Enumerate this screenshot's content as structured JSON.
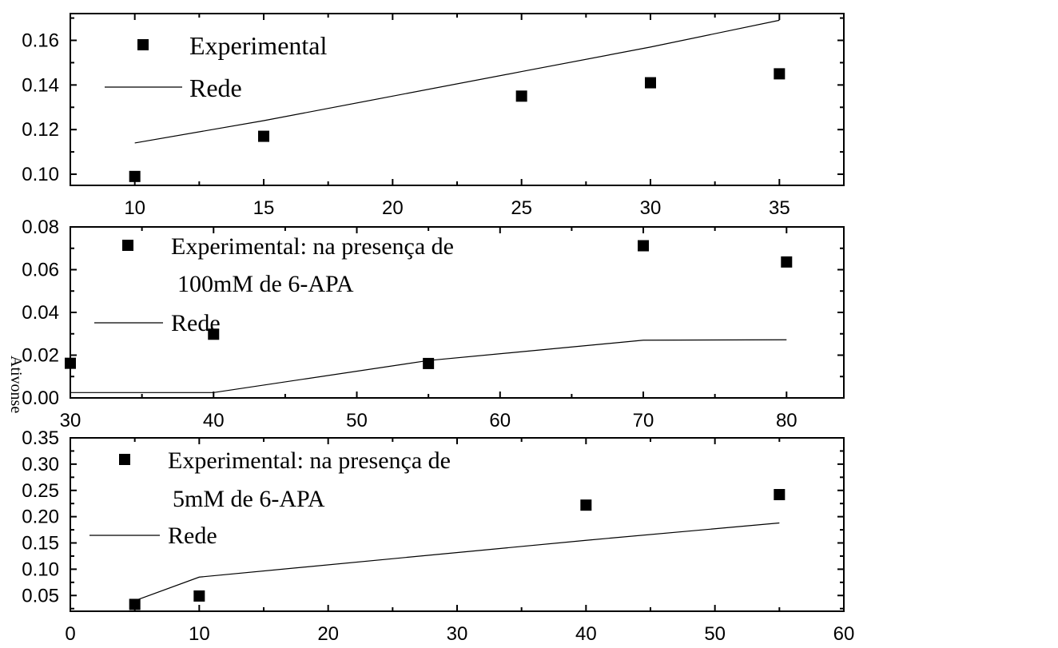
{
  "chart_data": [
    {
      "type": "scatter",
      "xlim": [
        7.5,
        37.5
      ],
      "ylim": [
        0.095,
        0.172
      ],
      "xticks": [
        10,
        15,
        20,
        25,
        30,
        35
      ],
      "xtick_labels": [
        "10",
        "15",
        "20",
        "25",
        "30",
        "35"
      ],
      "yticks": [
        0.1,
        0.12,
        0.14,
        0.16
      ],
      "ytick_labels": [
        "0.10",
        "0.12",
        "0.14",
        "0.16"
      ],
      "series": [
        {
          "name": "Experimental",
          "kind": "markers",
          "x": [
            10,
            15,
            25,
            30,
            35
          ],
          "y": [
            0.099,
            0.117,
            0.135,
            0.141,
            0.145
          ]
        },
        {
          "name": "Rede",
          "kind": "line",
          "x": [
            10,
            15,
            25,
            30,
            35
          ],
          "y": [
            0.114,
            0.124,
            0.146,
            0.157,
            0.169
          ]
        }
      ],
      "legend": [
        {
          "label": "Experimental"
        },
        {
          "label": "Rede"
        }
      ]
    },
    {
      "type": "scatter",
      "xlim": [
        30,
        84
      ],
      "ylim": [
        0.0,
        0.08
      ],
      "xticks": [
        30,
        40,
        50,
        60,
        70,
        80
      ],
      "xtick_labels": [
        "30",
        "40",
        "50",
        "60",
        "70",
        "80"
      ],
      "yticks": [
        0.0,
        0.02,
        0.04,
        0.06,
        0.08
      ],
      "ytick_labels": [
        "0.00",
        "0.02",
        "0.04",
        "0.06",
        "0.08"
      ],
      "series": [
        {
          "name": "Experimental: na presença de 100mM de 6-APA",
          "kind": "markers",
          "x": [
            30,
            40,
            55,
            70,
            80
          ],
          "y": [
            0.0162,
            0.0298,
            0.0161,
            0.0712,
            0.0636
          ]
        },
        {
          "name": "Rede",
          "kind": "line",
          "x": [
            30,
            40,
            55,
            70,
            80
          ],
          "y": [
            0.0025,
            0.0025,
            0.0175,
            0.027,
            0.0272
          ]
        }
      ],
      "legend": [
        {
          "label": "Experimental: na presença de",
          "label2": "100mM de 6-APA"
        },
        {
          "label": "Rede"
        }
      ]
    },
    {
      "type": "scatter",
      "xlim": [
        0,
        60
      ],
      "ylim": [
        0.02,
        0.35
      ],
      "xticks": [
        0,
        10,
        20,
        30,
        40,
        50,
        60
      ],
      "xtick_labels": [
        "0",
        "10",
        "20",
        "30",
        "40",
        "50",
        "60"
      ],
      "yticks": [
        0.05,
        0.1,
        0.15,
        0.2,
        0.25,
        0.3,
        0.35
      ],
      "ytick_labels": [
        "0.05",
        "0.10",
        "0.15",
        "0.20",
        "0.25",
        "0.30",
        "0.35"
      ],
      "series": [
        {
          "name": "Experimental: na presença de 5mM de 6-APA",
          "kind": "markers",
          "x": [
            5,
            10,
            40,
            55
          ],
          "y": [
            0.033,
            0.049,
            0.222,
            0.242
          ]
        },
        {
          "name": "Rede",
          "kind": "line",
          "x": [
            5,
            10,
            40,
            55
          ],
          "y": [
            0.04,
            0.085,
            0.155,
            0.188
          ]
        }
      ],
      "legend": [
        {
          "label": "Experimental: na presença de",
          "label2": "5mM de 6-APA"
        },
        {
          "label": "Rede"
        }
      ]
    }
  ],
  "ylabel_fragment": "Ativonse"
}
